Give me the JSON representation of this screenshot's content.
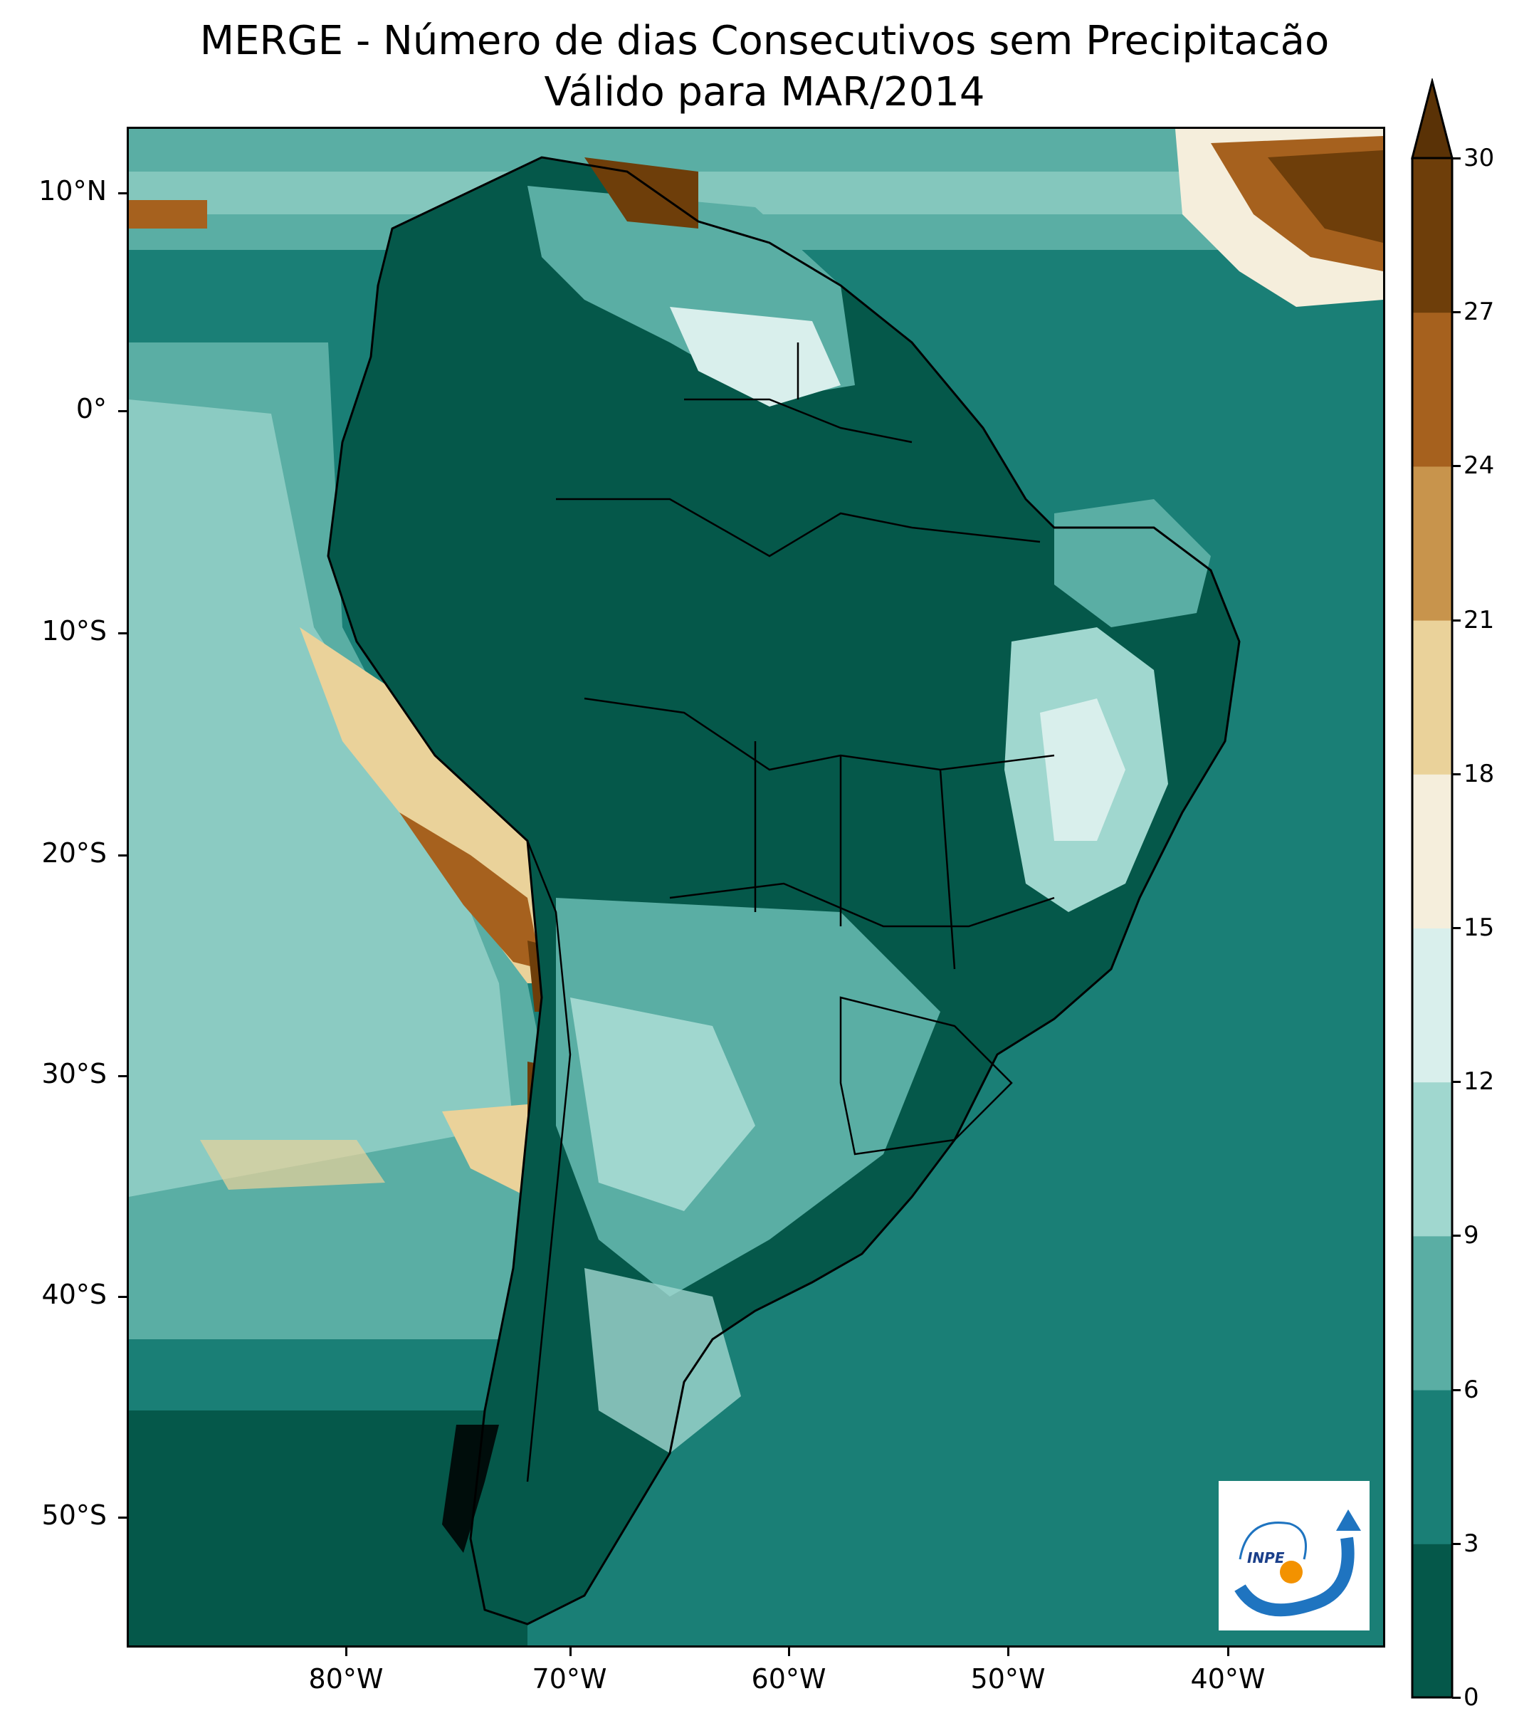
{
  "title": {
    "line1": "MERGE - Número de dias Consecutivos sem Precipitacão",
    "line2": "Válido para MAR/2014"
  },
  "axes": {
    "lat_labels": [
      "10°N",
      "0°",
      "10°S",
      "20°S",
      "30°S",
      "40°S",
      "50°S"
    ],
    "lon_labels": [
      "80°W",
      "70°W",
      "60°W",
      "50°W",
      "40°W"
    ]
  },
  "colorbar": {
    "ticks": [
      "0",
      "3",
      "6",
      "9",
      "12",
      "15",
      "18",
      "21",
      "24",
      "27",
      "30"
    ],
    "colors": [
      "#05584a",
      "#1a7f76",
      "#5aaea4",
      "#a0d7cf",
      "#d9efec",
      "#f5eedc",
      "#ead29a",
      "#c8944c",
      "#a6611e",
      "#6e3e0a",
      "#5a3206"
    ],
    "extend": "max"
  },
  "logo": {
    "text": "INPE"
  }
}
